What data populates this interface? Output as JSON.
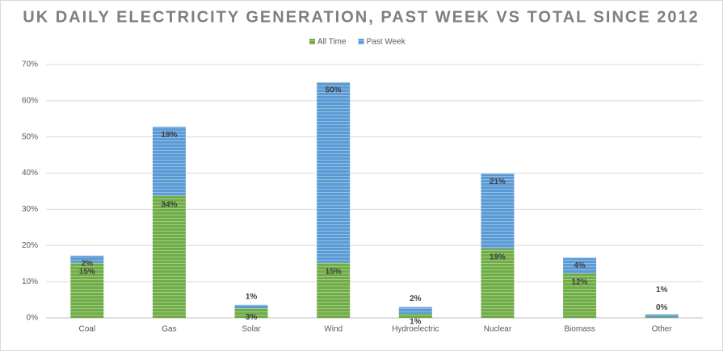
{
  "chart_data": {
    "type": "stacked_bar",
    "title": "UK DAILY ELECTRICITY GENERATION, PAST WEEK VS TOTAL SINCE 2012",
    "categories": [
      "Coal",
      "Gas",
      "Solar",
      "Wind",
      "Hydroelectric",
      "Nuclear",
      "Biomass",
      "Other"
    ],
    "series": [
      {
        "name": "All Time",
        "color": "#70ad47",
        "values": [
          15.2,
          33.7,
          2.6,
          15.2,
          1.1,
          19.2,
          12.3,
          0.2
        ],
        "value_labels": [
          "15%",
          "34%",
          "3%",
          "15%",
          "1%",
          "19%",
          "12%",
          "0%"
        ]
      },
      {
        "name": "Past Week",
        "color": "#5b9bd5",
        "values": [
          2.0,
          19.1,
          1.0,
          49.9,
          1.9,
          20.6,
          4.3,
          0.8
        ],
        "value_labels": [
          "2%",
          "19%",
          "1%",
          "50%",
          "2%",
          "21%",
          "4%",
          "1%"
        ]
      }
    ],
    "ylim": [
      0,
      70
    ],
    "yticks": [
      {
        "value": 0,
        "label": "0%"
      },
      {
        "value": 10,
        "label": "10%"
      },
      {
        "value": 20,
        "label": "20%"
      },
      {
        "value": 30,
        "label": "30%"
      },
      {
        "value": 40,
        "label": "40%"
      },
      {
        "value": 50,
        "label": "50%"
      },
      {
        "value": 60,
        "label": "60%"
      },
      {
        "value": 70,
        "label": "70%"
      }
    ],
    "grid": true,
    "legend": "top"
  }
}
